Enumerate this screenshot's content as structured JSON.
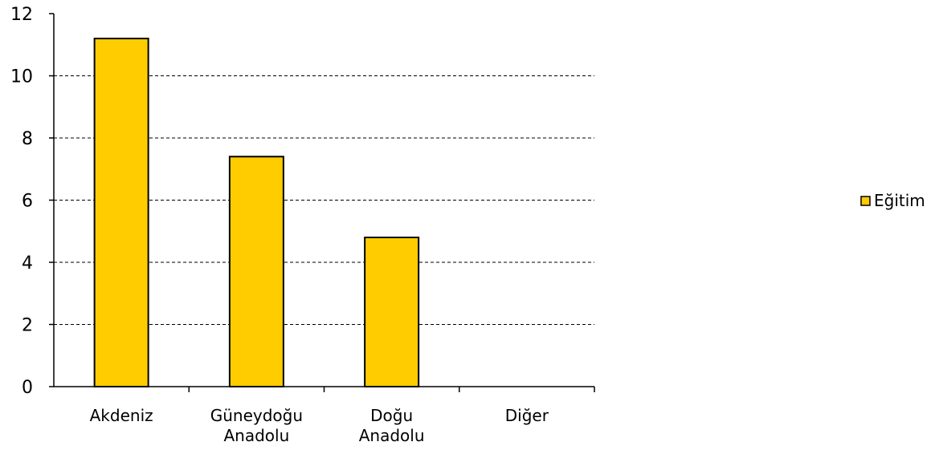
{
  "chart_data": {
    "type": "bar",
    "categories": [
      "Akdeniz",
      "Güneydoğu Anadolu",
      "Doğu Anadolu",
      "Diğer"
    ],
    "category_lines": [
      [
        "Akdeniz"
      ],
      [
        "Güneydoğu",
        "Anadolu"
      ],
      [
        "Doğu",
        "Anadolu"
      ],
      [
        "Diğer"
      ]
    ],
    "series": [
      {
        "name": "Eğitim",
        "values": [
          11.2,
          7.4,
          4.8,
          0
        ],
        "color": "#FFCC00"
      }
    ],
    "ylim": [
      0,
      12
    ],
    "yticks": [
      0,
      2,
      4,
      6,
      8,
      10,
      12
    ],
    "grid": "dashed horizontal",
    "legend_position": "right",
    "title": "",
    "xlabel": "",
    "ylabel": ""
  }
}
